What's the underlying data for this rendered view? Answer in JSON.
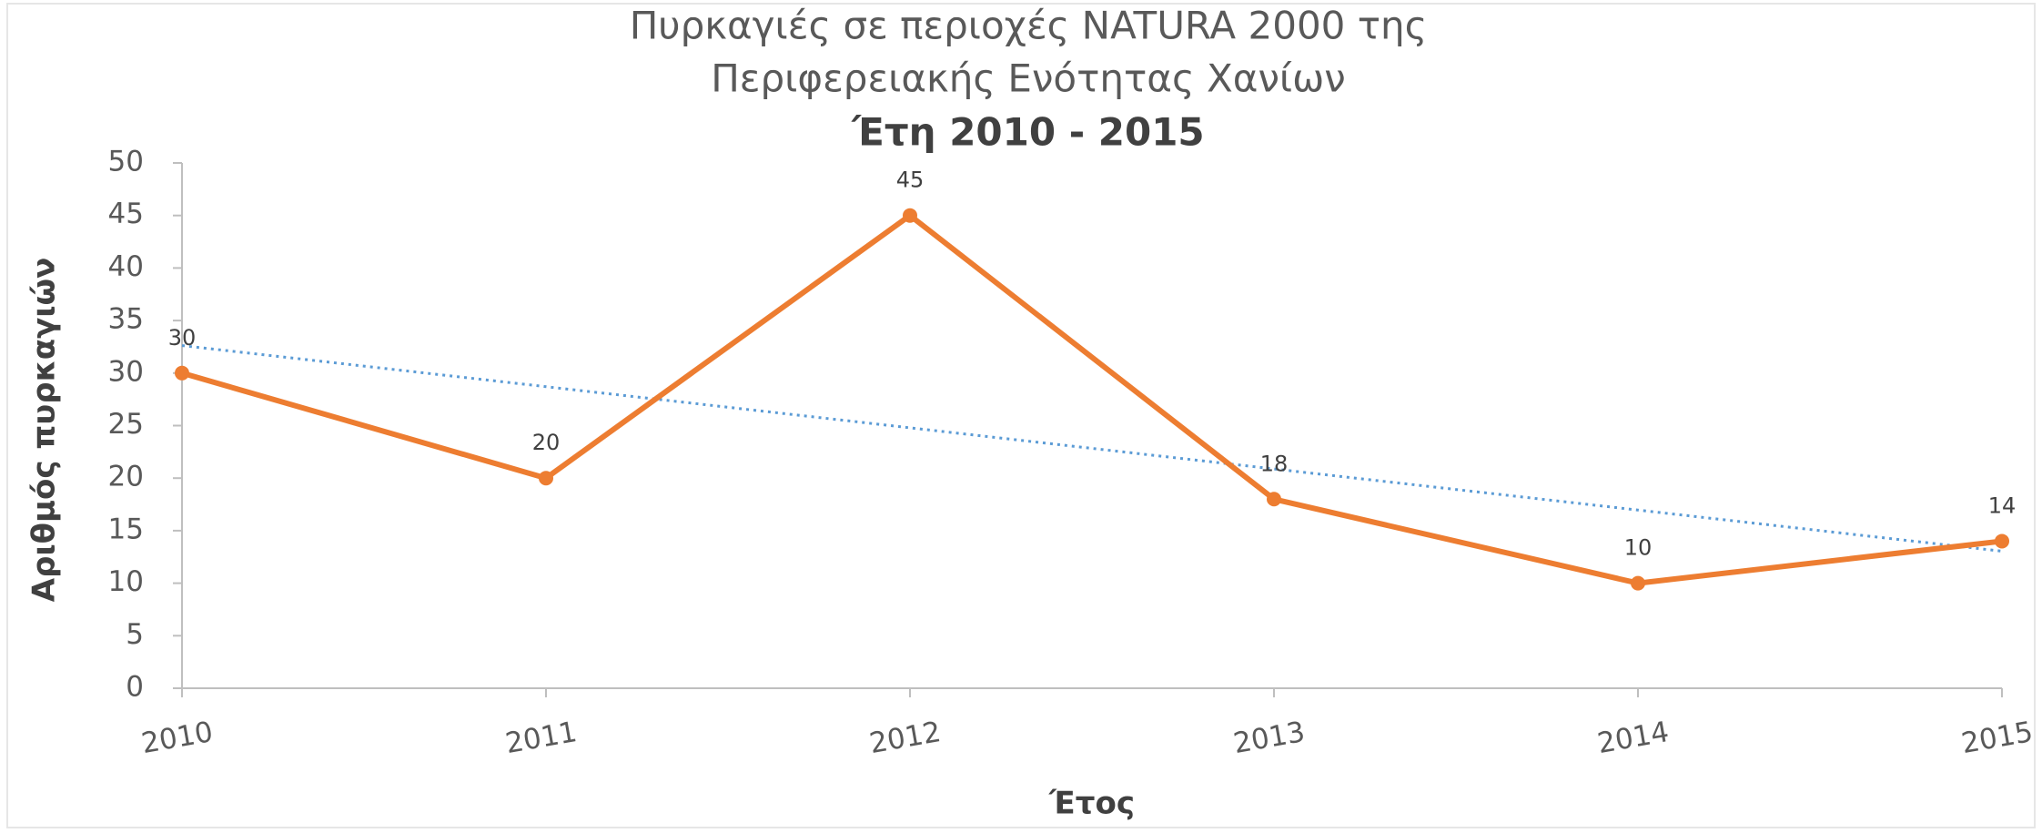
{
  "chart_data": {
    "type": "line",
    "title": [
      "Πυρκαγιές σε περιοχές NATURA 2000 της",
      "Περιφερειακής Ενότητας Χανίων"
    ],
    "subtitle": "Έτη 2010 - 2015",
    "x_label": "Έτος",
    "y_label": "Αριθμός πυρκαγιών",
    "x": [
      2010,
      2011,
      2012,
      2013,
      2014,
      2015
    ],
    "series": [
      {
        "color": "#ed7d31",
        "values": [
          30,
          20,
          45,
          18,
          10,
          14
        ]
      }
    ],
    "xlim": [
      2010,
      2015
    ],
    "xticks": [
      2010,
      2011,
      2012,
      2013,
      2014,
      2015
    ],
    "ylim": [
      0,
      50
    ],
    "yticks": [
      0,
      5,
      10,
      15,
      20,
      25,
      30,
      35,
      40,
      45,
      50
    ],
    "data_labels": true,
    "trendline": {
      "kind": "linear",
      "color": "#5b9bd5"
    }
  }
}
